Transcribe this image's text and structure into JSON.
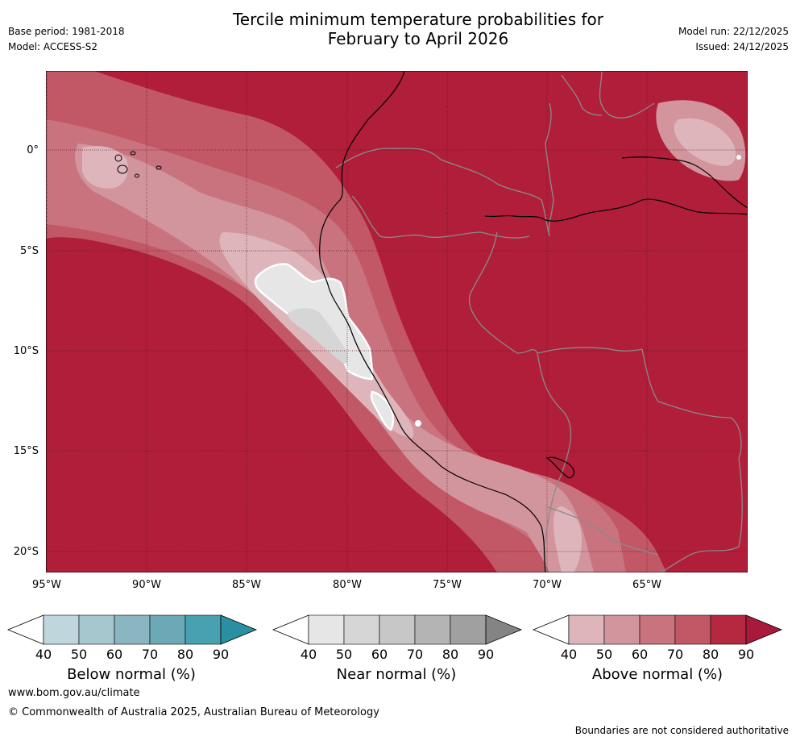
{
  "title": {
    "line1": "Tercile minimum temperature probabilities for",
    "line2": "February to April 2026"
  },
  "meta_left": {
    "base_period": "Base period: 1981-2018",
    "model": "Model: ACCESS-S2"
  },
  "meta_right": {
    "model_run": "Model run: 22/12/2025",
    "issued": "Issued: 24/12/2025"
  },
  "map": {
    "lat_labels": [
      "0°",
      "5°S",
      "10°S",
      "15°S",
      "20°S"
    ],
    "lon_labels": [
      "95°W",
      "90°W",
      "85°W",
      "80°W",
      "75°W",
      "70°W",
      "65°W"
    ],
    "base_color": "#b11e39"
  },
  "colorbars": {
    "tick_labels": [
      "40",
      "50",
      "60",
      "70",
      "80",
      "90"
    ],
    "below": {
      "title": "Below normal (%)",
      "colors": [
        "#bfd6dc",
        "#a6c7ce",
        "#89b6c0",
        "#6aa9b5",
        "#47a1b0",
        "#2a8fa0"
      ]
    },
    "near": {
      "title": "Near normal (%)",
      "colors": [
        "#e6e6e6",
        "#d6d6d6",
        "#c7c7c7",
        "#b4b4b4",
        "#a0a0a0",
        "#848484"
      ]
    },
    "above": {
      "title": "Above normal (%)",
      "colors": [
        "#deb5bb",
        "#d2959d",
        "#c9737f",
        "#c25866",
        "#b5283f",
        "#a8193a"
      ]
    }
  },
  "footer": {
    "website": "www.bom.gov.au/climate",
    "copyright": "© Commonwealth of Australia 2025, Australian Bureau of Meteorology",
    "disclaimer": "Boundaries are not considered authoritative"
  }
}
